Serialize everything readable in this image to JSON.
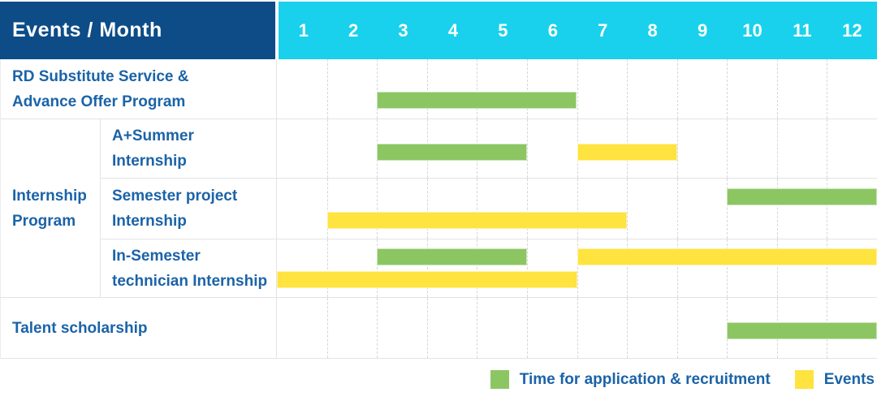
{
  "header": {
    "title": "Events / Month",
    "months": [
      "1",
      "2",
      "3",
      "4",
      "5",
      "6",
      "7",
      "8",
      "9",
      "10",
      "11",
      "12"
    ]
  },
  "colors": {
    "navy_header": "#0d4c87",
    "cyan_header": "#19d1ec",
    "green": "#8cc663",
    "yellow": "#ffe33e",
    "label_text": "#1b63a8",
    "grid_line": "#e3e3e3"
  },
  "legend": [
    {
      "color": "green",
      "label": "Time for application & recruitment"
    },
    {
      "color": "yellow",
      "label": "Events"
    }
  ],
  "chart_data": {
    "type": "gantt",
    "x_unit": "month",
    "x_range": [
      1,
      12
    ],
    "group_label_lines": [
      "Internship",
      "Program"
    ],
    "rows": [
      {
        "group": null,
        "label_lines": [
          "RD Substitute Service &",
          "Advance Offer Program"
        ],
        "bars": [
          {
            "kind": "application_recruitment",
            "color": "green",
            "start_month": 3,
            "end_month": 6,
            "lane": "bottom"
          }
        ]
      },
      {
        "group": "Internship Program",
        "label_lines": [
          "A+Summer",
          "Internship"
        ],
        "bars": [
          {
            "kind": "application_recruitment",
            "color": "green",
            "start_month": 3,
            "end_month": 5,
            "lane": "middle"
          },
          {
            "kind": "event",
            "color": "yellow",
            "start_month": 7,
            "end_month": 8,
            "lane": "middle"
          }
        ]
      },
      {
        "group": "Internship Program",
        "label_lines": [
          "Semester project",
          "Internship"
        ],
        "bars": [
          {
            "kind": "application_recruitment",
            "color": "green",
            "start_month": 10,
            "end_month": 12,
            "lane": "top"
          },
          {
            "kind": "event",
            "color": "yellow",
            "start_month": 2,
            "end_month": 7,
            "lane": "bottom"
          }
        ]
      },
      {
        "group": "Internship Program",
        "label_lines": [
          "In-Semester",
          "technician Internship"
        ],
        "bars": [
          {
            "kind": "application_recruitment",
            "color": "green",
            "start_month": 3,
            "end_month": 5,
            "lane": "top"
          },
          {
            "kind": "event",
            "color": "yellow",
            "start_month": 7,
            "end_month": 12,
            "lane": "top"
          },
          {
            "kind": "event",
            "color": "yellow",
            "start_month": 1,
            "end_month": 6,
            "lane": "bottom"
          }
        ]
      },
      {
        "group": null,
        "label_lines": [
          "Talent scholarship"
        ],
        "bars": [
          {
            "kind": "application_recruitment",
            "color": "green",
            "start_month": 10,
            "end_month": 12,
            "lane": "middle"
          }
        ]
      }
    ]
  }
}
